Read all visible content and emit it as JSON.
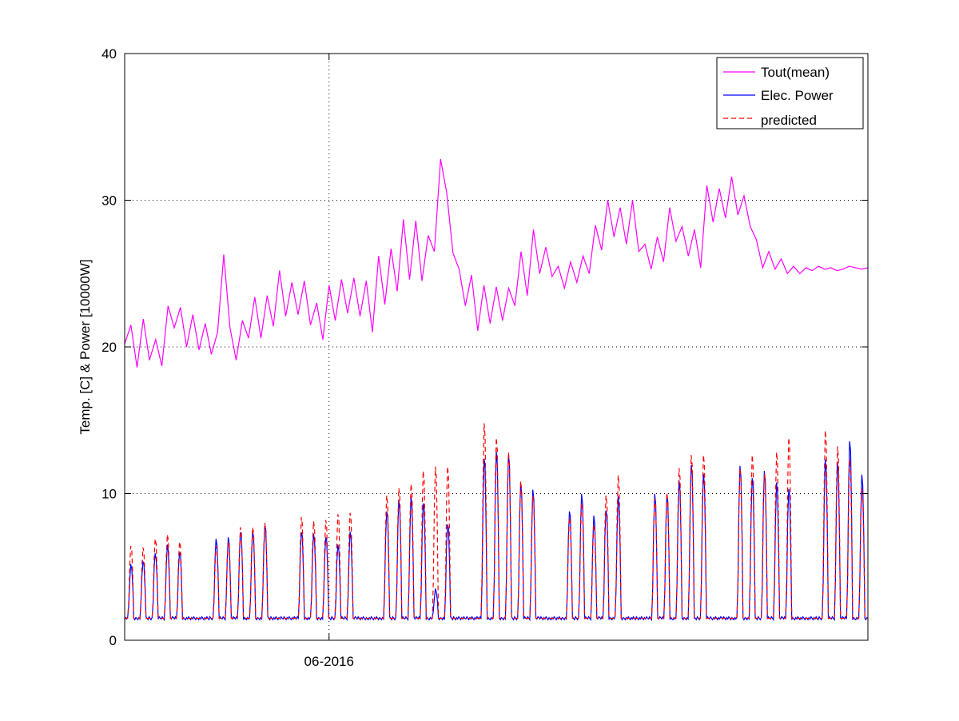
{
  "chart_data": {
    "type": "line",
    "title": "",
    "xlabel": "",
    "ylabel": "Temp. [C] & Power [10000W]",
    "ylim": [
      0,
      40
    ],
    "yticks": [
      0,
      10,
      20,
      30,
      40
    ],
    "x_unit": "day",
    "xlim": [
      0,
      60
    ],
    "xticks": [
      {
        "x": 16.5,
        "label": "06-2016"
      }
    ],
    "grid": "dotted (y at 10, 20, 30, 40; x at 06-2016)",
    "legend_position": "top-right",
    "series": [
      {
        "name": "Tout(mean)",
        "color": "#ff00ff",
        "style": "solid",
        "x": [
          0.0,
          0.5,
          1.0,
          1.5,
          2.0,
          2.5,
          3.0,
          3.5,
          4.0,
          4.5,
          5.0,
          5.5,
          6.0,
          6.5,
          7.0,
          7.5,
          8.0,
          8.5,
          9.0,
          9.5,
          10.0,
          10.5,
          11.0,
          11.5,
          12.0,
          12.5,
          13.0,
          13.5,
          14.0,
          14.5,
          15.0,
          15.5,
          16.0,
          16.5,
          17.0,
          17.5,
          18.0,
          18.5,
          19.0,
          19.5,
          20.0,
          20.5,
          21.0,
          21.5,
          22.0,
          22.5,
          23.0,
          23.5,
          24.0,
          24.5,
          25.0,
          25.5,
          26.0,
          26.5,
          27.0,
          27.5,
          28.0,
          28.5,
          29.0,
          29.5,
          30.0,
          30.5,
          31.0,
          31.5,
          32.0,
          32.5,
          33.0,
          33.5,
          34.0,
          34.5,
          35.0,
          35.5,
          36.0,
          36.5,
          37.0,
          37.5,
          38.0,
          38.5,
          39.0,
          39.5,
          40.0,
          40.5,
          41.0,
          41.5,
          42.0,
          42.5,
          43.0,
          43.5,
          44.0,
          44.5,
          45.0,
          45.5,
          46.0,
          46.5,
          47.0,
          47.5,
          48.0,
          48.5,
          49.0,
          49.5,
          50.0,
          50.5,
          51.0,
          51.5,
          52.0,
          52.5,
          53.0,
          53.5,
          54.0,
          54.5,
          55.0,
          55.5,
          56.0,
          56.5,
          57.0,
          57.5,
          58.0,
          58.5,
          59.0,
          59.5,
          60.0
        ],
        "values": [
          20.2,
          21.5,
          18.6,
          21.9,
          19.1,
          20.5,
          18.7,
          22.8,
          21.3,
          22.7,
          20.0,
          22.2,
          19.8,
          21.6,
          19.5,
          21.0,
          26.3,
          21.3,
          19.1,
          21.8,
          20.6,
          23.4,
          20.6,
          23.5,
          21.4,
          25.2,
          22.1,
          24.4,
          22.2,
          24.5,
          21.5,
          23.0,
          20.5,
          24.2,
          21.8,
          24.6,
          22.3,
          24.7,
          22.1,
          24.5,
          21.0,
          26.2,
          22.9,
          26.7,
          23.8,
          28.7,
          24.6,
          28.6,
          24.5,
          27.6,
          26.5,
          32.8,
          30.5,
          26.4,
          25.3,
          22.8,
          24.9,
          21.1,
          24.2,
          21.6,
          24.1,
          21.8,
          24.0,
          22.8,
          26.5,
          23.5,
          28.0,
          25.0,
          26.8,
          24.8,
          25.5,
          24.0,
          25.8,
          24.4,
          26.2,
          25.0,
          28.3,
          26.6,
          30.0,
          27.5,
          29.5,
          27.0,
          30.0,
          26.5,
          27.0,
          25.3,
          27.5,
          25.8,
          29.5,
          27.2,
          28.2,
          26.2,
          28.0,
          25.4,
          31.0,
          28.5,
          30.8,
          28.8,
          31.6,
          29.0,
          30.3,
          28.2,
          27.3,
          25.4,
          26.5,
          25.3,
          26.0,
          25.0,
          25.5,
          25.0,
          25.4,
          25.2,
          25.5,
          25.3,
          25.4,
          25.2,
          25.3,
          25.5,
          25.4,
          25.3,
          25.4
        ],
        "note": "diurnal oscillating mean temperature"
      },
      {
        "name": "Elec. Power",
        "color": "#0000ff",
        "style": "solid",
        "daily_peaks": [
          5.2,
          5.5,
          6.0,
          6.5,
          6.1,
          0,
          0,
          7.0,
          7.0,
          7.5,
          7.5,
          8.0,
          0,
          0,
          7.5,
          7.3,
          7.2,
          6.6,
          7.4,
          0,
          0,
          9.0,
          9.7,
          9.8,
          9.5,
          3.5,
          8.1,
          0,
          0,
          12.6,
          13.0,
          12.9,
          10.8,
          10.3,
          0,
          0,
          9.0,
          10.1,
          8.5,
          9.0,
          9.9,
          0,
          0,
          10.0,
          10.0,
          11.0,
          12.2,
          11.5,
          0,
          0,
          12.0,
          11.3,
          11.7,
          10.8,
          10.5,
          0,
          0,
          12.5,
          12.2,
          13.8,
          11.4
        ],
        "baseline": 1.5
      },
      {
        "name": "predicted",
        "color": "#ff0000",
        "style": "dashed",
        "daily_peaks": [
          6.5,
          6.4,
          7.0,
          7.3,
          6.8,
          0,
          0,
          6.5,
          6.8,
          7.8,
          7.8,
          8.1,
          0,
          0,
          8.5,
          8.2,
          8.3,
          8.7,
          8.8,
          0,
          0,
          10.0,
          10.5,
          10.8,
          11.7,
          12.0,
          12.0,
          0,
          0,
          15.0,
          14.0,
          13.0,
          11.0,
          10.0,
          0,
          0,
          8.5,
          9.5,
          8.0,
          10.0,
          11.4,
          0,
          0,
          9.8,
          10.2,
          11.9,
          12.8,
          12.8,
          0,
          0,
          11.9,
          12.8,
          11.5,
          13.0,
          14.0,
          0,
          0,
          14.5,
          13.4,
          12.5,
          10.5
        ],
        "baseline": 1.5
      }
    ]
  }
}
